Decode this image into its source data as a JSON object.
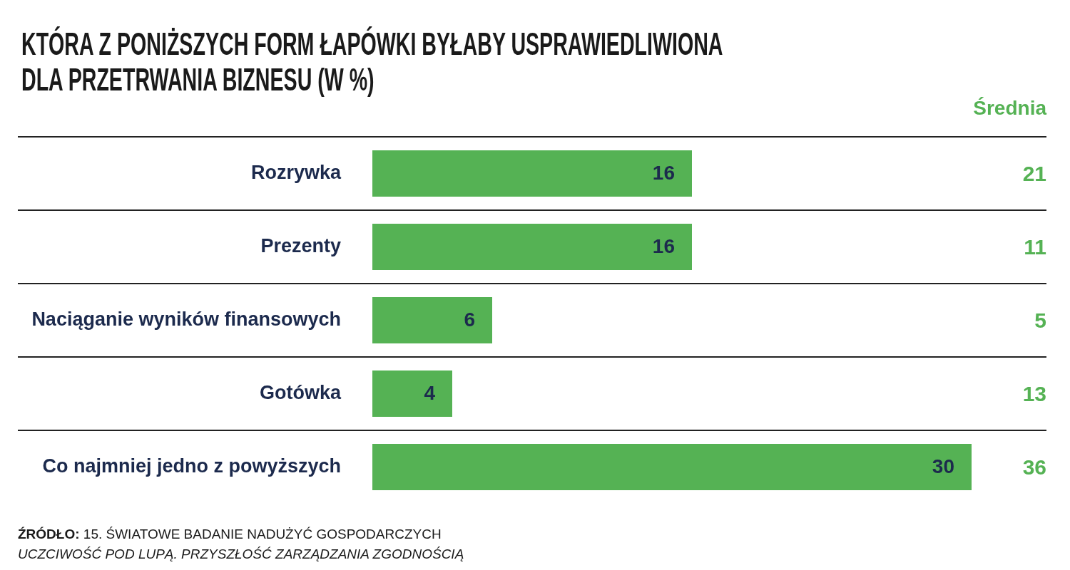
{
  "chart_data": [
    {
      "type": "bar",
      "orientation": "horizontal",
      "title": "KTÓRA Z PONIŻSZYCH FORM ŁAPÓWKI BYŁABY USPRAWIEDLIWIONA DLA PRZETRWANIA BIZNESU (W %)",
      "categories": [
        "Rozrywka",
        "Prezenty",
        "Naciąganie wyników finansowych",
        "Gotówka",
        "Co najmniej jedno z powyższych"
      ],
      "values": [
        16,
        16,
        6,
        4,
        30
      ],
      "color": "#55b254",
      "data_labels": true,
      "xlim": [
        0,
        30
      ],
      "tick_labels": "y",
      "grid": "y",
      "annotations": [
        "ŹRÓDŁO: 15. ŚWIATOWE BADANIE NADUŻYĆ GOSPODARCZYCH",
        "UCZCIWOŚĆ POD LUPĄ. PRZYSZŁOŚĆ ZARZĄDZANIA ZGODNOŚCIĄ"
      ]
    },
    {
      "type": "other",
      "title": "Średnia",
      "values": [
        21,
        11,
        5,
        13,
        36
      ],
      "color": "#55b254",
      "data_labels": true
    }
  ]
}
